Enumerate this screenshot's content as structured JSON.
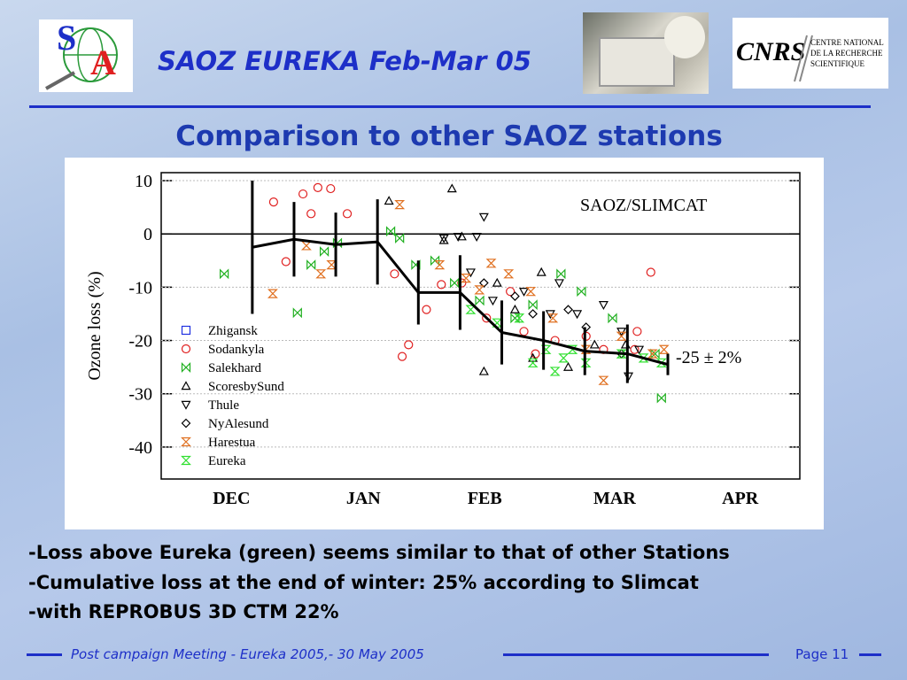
{
  "header": {
    "title": "SAOZ EUREKA Feb-Mar 05",
    "subtitle": "Comparison to other SAOZ stations",
    "logo_left": [
      "S",
      "A"
    ],
    "logo_right": {
      "mark": "CNRS",
      "lines": [
        "CENTRE NATIONAL",
        "DE LA RECHERCHE",
        "SCIENTIFIQUE"
      ]
    }
  },
  "chart_data": {
    "type": "scatter",
    "ylabel": "Ozone loss (%)",
    "ylim": [
      -46,
      11.5
    ],
    "yticks": [
      10,
      0,
      -10,
      -20,
      -30,
      -40
    ],
    "grid": true,
    "xlim": [
      -1,
      149
    ],
    "xticks": [
      {
        "value": 15.5,
        "label": "DEC"
      },
      {
        "value": 46.5,
        "label": "JAN"
      },
      {
        "value": 75,
        "label": "FEB"
      },
      {
        "value": 105.5,
        "label": "MAR"
      },
      {
        "value": 135,
        "label": "APR"
      }
    ],
    "legend": "left",
    "annotations": [
      "SAOZ/SLIMCAT",
      "-25 ± 2%"
    ],
    "series": [
      {
        "name": "Zhigansk",
        "color": "#2030e0",
        "marker": "square",
        "x": [],
        "values": []
      },
      {
        "name": "Sodankyla",
        "color": "#e02020",
        "marker": "circle",
        "x": [
          25.4,
          32.3,
          35.8,
          34.2,
          38.8,
          42.7,
          28.3,
          55.6,
          53.8,
          57.1,
          61.3,
          64.8,
          69.6,
          75.4,
          81,
          84.2,
          86.9,
          91.5,
          98.8,
          102.9,
          110.8,
          114,
          110.2
        ],
        "values": [
          6,
          7.5,
          8.7,
          3.8,
          8.5,
          3.8,
          -5.2,
          -23,
          -7.5,
          -20.8,
          -14.2,
          -9.5,
          -9.2,
          -15.8,
          -10.8,
          -18.3,
          -22.5,
          -20,
          -19.2,
          -21.7,
          -18.3,
          -7.2,
          -21.7
        ]
      },
      {
        "name": "Salekhard",
        "color": "#20b020",
        "marker": "bowtie",
        "x": [
          13.8,
          31,
          34.2,
          37.3,
          40.4,
          52.9,
          55,
          58.8,
          63.3,
          67.9,
          73.8,
          82.1,
          86.3,
          92.9,
          97.7,
          105,
          116.5,
          115
        ],
        "values": [
          -7.5,
          -14.8,
          -5.8,
          -3.3,
          -1.7,
          0.5,
          -0.8,
          -5.8,
          -5,
          -9.2,
          -12.5,
          -15.8,
          -13.3,
          -7.5,
          -10.8,
          -15.8,
          -30.8,
          -22.5
        ]
      },
      {
        "name": "ScoresbySund",
        "color": "#000000",
        "marker": "triangle-up",
        "x": [
          67.3,
          52.5,
          65.4,
          69.6,
          77.9,
          82.1,
          88.3,
          74.8,
          86.3,
          94.6,
          100.8,
          108.1
        ],
        "values": [
          8.5,
          6.2,
          -1.2,
          -0.5,
          -9.2,
          -14.2,
          -7.2,
          -25.8,
          -23.3,
          -25,
          -20.8,
          -20.8
        ]
      },
      {
        "name": "Thule",
        "color": "#000000",
        "marker": "triangle-down",
        "x": [
          74.8,
          65.4,
          68.75,
          73.1,
          71.7,
          76.9,
          84.2,
          92.5,
          90.4,
          96.7,
          102.9,
          107.1,
          108.75,
          111.25
        ],
        "values": [
          3.2,
          -0.8,
          -0.5,
          -0.5,
          -7.2,
          -12.5,
          -10.8,
          -9.2,
          -15,
          -15,
          -13.3,
          -18.3,
          -26.7,
          -21.7
        ]
      },
      {
        "name": "NyAlesund",
        "color": "#000000",
        "marker": "diamond",
        "x": [
          74.8,
          82.1,
          86.3,
          94.6,
          98.8,
          107.1
        ],
        "values": [
          -9.2,
          -11.7,
          -15,
          -14.2,
          -17.5,
          -22.5
        ]
      },
      {
        "name": "Harestua",
        "color": "#e07020",
        "marker": "hourglass",
        "x": [
          25.2,
          33.1,
          36.5,
          39,
          55,
          64.4,
          70.6,
          73.75,
          76.5,
          80.6,
          85.8,
          91,
          98.75,
          102.9,
          107.1,
          114.4,
          117.1
        ],
        "values": [
          -11.2,
          -2.2,
          -7.5,
          -5.8,
          5.5,
          -5.8,
          -8.3,
          -10.5,
          -5.5,
          -7.5,
          -10.8,
          -15.8,
          -21.7,
          -27.5,
          -19.2,
          -22.5,
          -21.7
        ]
      },
      {
        "name": "Eureka",
        "color": "#30e030",
        "marker": "cross",
        "x": [
          71.7,
          77.9,
          83.1,
          86.3,
          89.4,
          91.5,
          93.5,
          95.6,
          98.75,
          107.1,
          112.3,
          116.5
        ],
        "values": [
          -14.2,
          -16.7,
          -15.8,
          -24.2,
          -21.7,
          -25.8,
          -23.3,
          -21.7,
          -24.2,
          -22.5,
          -23.3,
          -24.2
        ]
      }
    ],
    "mean": {
      "color": "#000000",
      "x": [
        20.4,
        30.2,
        40,
        49.8,
        59.4,
        69.2,
        79,
        88.8,
        98.5,
        108.5,
        118
      ],
      "values": [
        -2.5,
        -1,
        -2,
        -1.5,
        -11,
        -11,
        -18.5,
        -20,
        -22,
        -22.5,
        -24.5
      ],
      "errors": [
        12.5,
        7,
        6,
        8,
        6,
        7,
        6,
        5.5,
        4.5,
        5.5,
        2
      ]
    }
  },
  "bullets": [
    "-Loss above Eureka (green) seems similar to that of other Stations",
    "-Cumulative loss at the end of winter: 25% according to Slimcat",
    "-with REPROBUS 3D CTM 22%"
  ],
  "footer": {
    "text": "Post campaign Meeting - Eureka 2005,- 30 May 2005",
    "page": "Page 11"
  }
}
